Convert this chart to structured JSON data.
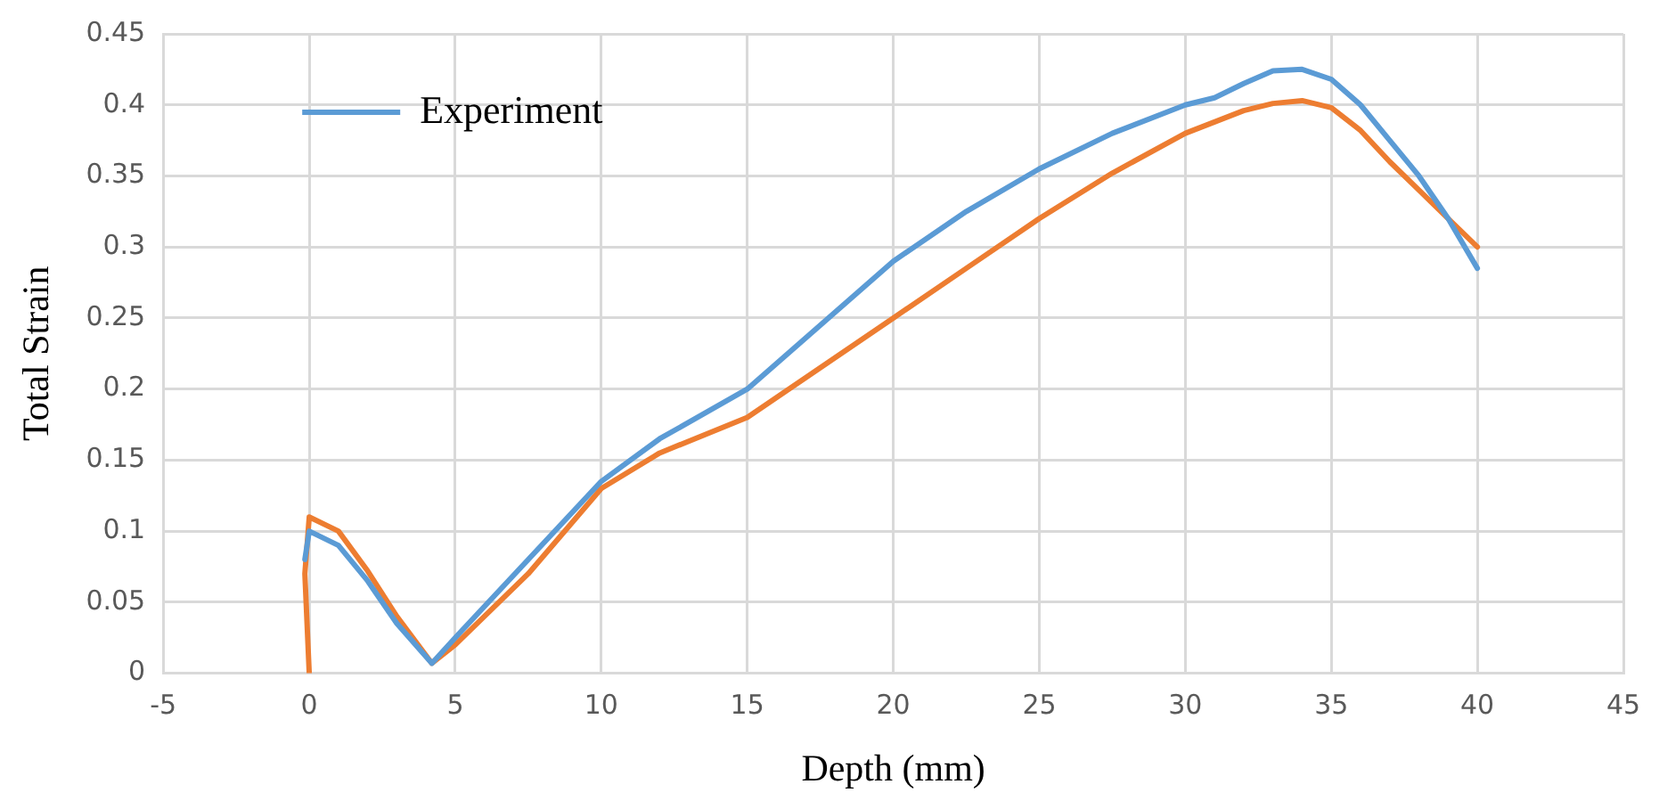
{
  "chart_data": {
    "type": "line",
    "xlabel": "Depth (mm)",
    "ylabel": "Total Strain",
    "xlim": [
      -5,
      45
    ],
    "xticks": [
      -5,
      0,
      5,
      10,
      15,
      20,
      25,
      30,
      35,
      40,
      45
    ],
    "ylim": [
      0,
      0.45
    ],
    "yticks": [
      0,
      0.05,
      0.1,
      0.15,
      0.2,
      0.25,
      0.3,
      0.35,
      0.4,
      0.45
    ],
    "grid": true,
    "legend": "top left",
    "marker": "none",
    "line_style": "solid",
    "series": [
      {
        "name": "Experiment",
        "color": "#5b9bd5",
        "x": [
          -0.15,
          0,
          1,
          2,
          3,
          4.2,
          5,
          7.5,
          10,
          12,
          15,
          17.5,
          20,
          22.5,
          25,
          27.5,
          30,
          31,
          32,
          33,
          34,
          35,
          36,
          37,
          38,
          39,
          40
        ],
        "values": [
          0.08,
          0.1,
          0.09,
          0.065,
          0.035,
          0.007,
          0.025,
          0.08,
          0.135,
          0.165,
          0.2,
          0.245,
          0.29,
          0.325,
          0.355,
          0.38,
          0.4,
          0.405,
          0.415,
          0.424,
          0.425,
          0.418,
          0.4,
          0.375,
          0.35,
          0.32,
          0.285
        ]
      },
      {
        "color": "#ed7d31",
        "x": [
          0,
          -0.15,
          0,
          1,
          2,
          3,
          4.2,
          5,
          7.5,
          10,
          12,
          15,
          17.5,
          20,
          22.5,
          25,
          27.5,
          30,
          31,
          32,
          33,
          34,
          35,
          36,
          37,
          38,
          39,
          40
        ],
        "values": [
          0,
          0.07,
          0.11,
          0.1,
          0.072,
          0.04,
          0.007,
          0.02,
          0.07,
          0.13,
          0.155,
          0.18,
          0.215,
          0.25,
          0.285,
          0.32,
          0.352,
          0.38,
          0.388,
          0.396,
          0.401,
          0.403,
          0.398,
          0.382,
          0.36,
          0.34,
          0.32,
          0.3
        ]
      }
    ]
  }
}
